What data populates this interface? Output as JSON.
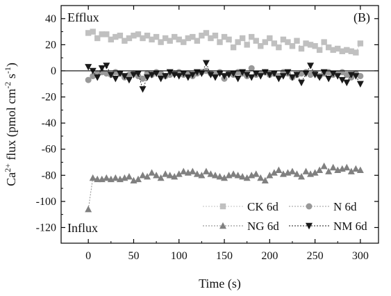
{
  "chart_data": {
    "type": "scatter",
    "panel_label": "(B)",
    "xlabel": "Time (s)",
    "ylabel_parts": {
      "main": "Ca",
      "sup1": "2+",
      "mid": " flux (pmol cm",
      "sup2": "-2",
      "mid2": " s",
      "sup3": "-1",
      "end": ")"
    },
    "xlim": [
      -30,
      320
    ],
    "ylim": [
      -132,
      50
    ],
    "xticks": [
      0,
      50,
      100,
      150,
      200,
      250,
      300
    ],
    "yticks": [
      40,
      20,
      0,
      -20,
      -40,
      -60,
      -80,
      -100,
      -120
    ],
    "zero_line": 0,
    "annotations": {
      "top": "Efflux",
      "bottom": "Influx"
    },
    "legend_position": "bottom-right",
    "grid": false,
    "series": [
      {
        "name": "CK 6d",
        "marker": "square",
        "color": "#c0c0c0",
        "x": [
          0,
          5,
          10,
          15,
          20,
          25,
          30,
          35,
          40,
          45,
          50,
          55,
          60,
          65,
          70,
          75,
          80,
          85,
          90,
          95,
          100,
          105,
          110,
          115,
          120,
          125,
          130,
          135,
          140,
          145,
          150,
          155,
          160,
          165,
          170,
          175,
          180,
          185,
          190,
          195,
          200,
          205,
          210,
          215,
          220,
          225,
          230,
          235,
          240,
          245,
          250,
          255,
          260,
          265,
          270,
          275,
          280,
          285,
          290,
          295,
          300
        ],
        "y": [
          29,
          30,
          25,
          28,
          28,
          24,
          26,
          27,
          23,
          25,
          27,
          28,
          25,
          27,
          24,
          26,
          22,
          25,
          23,
          26,
          24,
          22,
          25,
          26,
          23,
          27,
          29,
          25,
          27,
          22,
          26,
          24,
          18,
          22,
          25,
          20,
          26,
          23,
          19,
          22,
          25,
          21,
          18,
          24,
          22,
          19,
          23,
          17,
          21,
          20,
          19,
          16,
          22,
          18,
          16,
          17,
          15,
          16,
          15,
          14,
          21
        ]
      },
      {
        "name": "N 6d",
        "marker": "circle",
        "color": "#999999",
        "x": [
          0,
          5,
          10,
          15,
          20,
          25,
          30,
          35,
          40,
          45,
          50,
          55,
          60,
          65,
          70,
          75,
          80,
          85,
          90,
          95,
          100,
          105,
          110,
          115,
          120,
          125,
          130,
          135,
          140,
          145,
          150,
          155,
          160,
          165,
          170,
          175,
          180,
          185,
          190,
          195,
          200,
          205,
          210,
          215,
          220,
          225,
          230,
          235,
          240,
          245,
          250,
          255,
          260,
          265,
          270,
          275,
          280,
          285,
          290,
          295,
          300
        ],
        "y": [
          -7,
          -4,
          -2,
          -1,
          -2,
          -3,
          -1,
          -2,
          -5,
          -3,
          -2,
          -4,
          -6,
          -2,
          -3,
          -1,
          -2,
          -4,
          -3,
          -2,
          -1,
          -3,
          -2,
          -4,
          -2,
          -1,
          0,
          -2,
          -3,
          -1,
          -6,
          -2,
          -3,
          -1,
          -2,
          -4,
          2,
          -3,
          -2,
          -1,
          -3,
          -2,
          -4,
          -1,
          -2,
          -5,
          -3,
          -2,
          -1,
          -3,
          -2,
          -4,
          -2,
          -1,
          -3,
          -2,
          -1,
          -3,
          -5,
          -2,
          -4
        ]
      },
      {
        "name": "NG 6d",
        "marker": "triangle-up",
        "color": "#808080",
        "x": [
          0,
          5,
          10,
          15,
          20,
          25,
          30,
          35,
          40,
          45,
          50,
          55,
          60,
          65,
          70,
          75,
          80,
          85,
          90,
          95,
          100,
          105,
          110,
          115,
          120,
          125,
          130,
          135,
          140,
          145,
          150,
          155,
          160,
          165,
          170,
          175,
          180,
          185,
          190,
          195,
          200,
          205,
          210,
          215,
          220,
          225,
          230,
          235,
          240,
          245,
          250,
          255,
          260,
          265,
          270,
          275,
          280,
          285,
          290,
          295,
          300
        ],
        "y": [
          -106,
          -82,
          -83,
          -83,
          -82,
          -83,
          -82,
          -83,
          -82,
          -81,
          -84,
          -83,
          -80,
          -81,
          -78,
          -80,
          -82,
          -79,
          -80,
          -81,
          -79,
          -77,
          -78,
          -77,
          -79,
          -80,
          -77,
          -79,
          -80,
          -81,
          -82,
          -80,
          -79,
          -80,
          -81,
          -82,
          -80,
          -79,
          -82,
          -84,
          -80,
          -78,
          -76,
          -79,
          -78,
          -77,
          -79,
          -81,
          -77,
          -79,
          -78,
          -76,
          -73,
          -77,
          -74,
          -76,
          -75,
          -74,
          -77,
          -75,
          -76
        ]
      },
      {
        "name": "NM 6d",
        "marker": "triangle-down",
        "color": "#1a1a1a",
        "x": [
          0,
          5,
          10,
          15,
          20,
          25,
          30,
          35,
          40,
          45,
          50,
          55,
          60,
          65,
          70,
          75,
          80,
          85,
          90,
          95,
          100,
          105,
          110,
          115,
          120,
          125,
          130,
          135,
          140,
          145,
          150,
          155,
          160,
          165,
          170,
          175,
          180,
          185,
          190,
          195,
          200,
          205,
          210,
          215,
          220,
          225,
          230,
          235,
          240,
          245,
          250,
          255,
          260,
          265,
          270,
          275,
          280,
          285,
          290,
          295,
          300
        ],
        "y": [
          3,
          0,
          -5,
          2,
          4,
          -3,
          -6,
          -2,
          -4,
          -7,
          -3,
          -2,
          -14,
          -5,
          -3,
          -2,
          -6,
          -4,
          -1,
          -3,
          -4,
          -2,
          -5,
          -3,
          -1,
          -2,
          6,
          -3,
          -5,
          -2,
          -4,
          -3,
          -2,
          -6,
          -1,
          -3,
          -5,
          -2,
          -4,
          -1,
          -3,
          -2,
          -6,
          -4,
          -1,
          -5,
          -3,
          -9,
          -2,
          4,
          -3,
          -5,
          -1,
          -6,
          -2,
          -4,
          -7,
          -9,
          -3,
          -4,
          -10
        ]
      }
    ]
  }
}
